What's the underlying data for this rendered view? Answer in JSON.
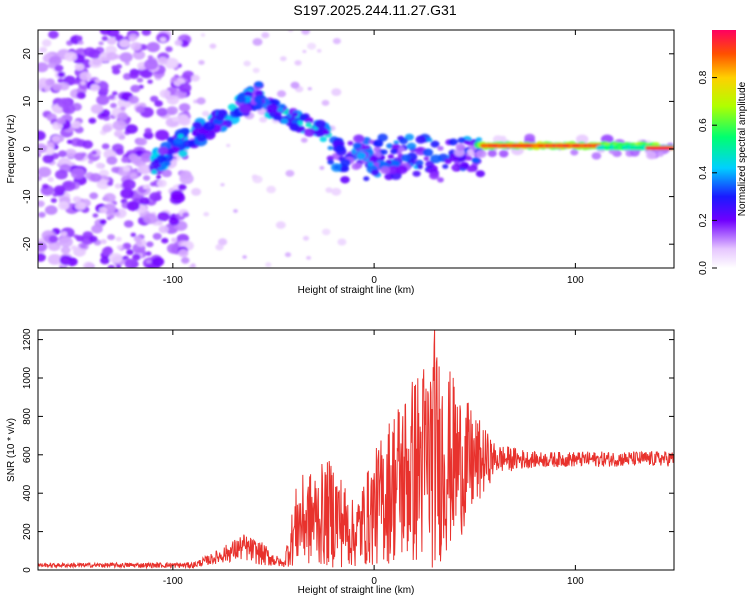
{
  "title": "S197.2025.244.11.27.G31",
  "chart_data": [
    {
      "type": "heatmap",
      "title": "",
      "xlabel": "Height of straight line (km)",
      "ylabel": "Frequency (Hz)",
      "xlim": [
        -167,
        149
      ],
      "ylim": [
        -25,
        25
      ],
      "xticks": [
        -100,
        0,
        100
      ],
      "yticks": [
        -20,
        -10,
        0,
        10,
        20
      ],
      "colorbar": {
        "label": "Normalized spectral amplitude",
        "range": [
          0,
          1
        ],
        "ticks": [
          "0.0",
          "0.2",
          "0.4",
          "0.6",
          "0.8"
        ]
      },
      "features": [
        {
          "name": "scattered-noise",
          "x_range": [
            -167,
            -95
          ],
          "freq_range": [
            -25,
            25
          ],
          "amplitude": 0.15
        },
        {
          "name": "rising-trace",
          "x_range": [
            -110,
            -55
          ],
          "freq_range": [
            -3,
            14
          ],
          "amplitude": 0.4
        },
        {
          "name": "falling-trace",
          "x_range": [
            -55,
            -22
          ],
          "freq_range": [
            3,
            9
          ],
          "amplitude": 0.45
        },
        {
          "name": "near-zero-band",
          "x_range": [
            -20,
            50
          ],
          "freq_range": [
            -4,
            2
          ],
          "amplitude": 0.35
        },
        {
          "name": "strong-stable-line",
          "x_range": [
            50,
            148
          ],
          "freq": 0.5,
          "amplitude": 0.95
        }
      ]
    },
    {
      "type": "line",
      "title": "",
      "xlabel": "Height of straight line (km)",
      "ylabel": "SNR (10 * v/v)",
      "xlim": [
        -167,
        149
      ],
      "ylim": [
        0,
        1250
      ],
      "xticks": [
        -100,
        0,
        100
      ],
      "yticks": [
        0,
        200,
        400,
        600,
        800,
        1000,
        1200
      ],
      "color": "#e8322d",
      "profile": [
        {
          "x": -167,
          "mean": 25,
          "amp": 10
        },
        {
          "x": -90,
          "mean": 25,
          "amp": 15
        },
        {
          "x": -80,
          "mean": 60,
          "amp": 30
        },
        {
          "x": -65,
          "mean": 120,
          "amp": 70
        },
        {
          "x": -55,
          "mean": 80,
          "amp": 60
        },
        {
          "x": -45,
          "mean": 30,
          "amp": 15
        },
        {
          "x": -38,
          "mean": 250,
          "amp": 230
        },
        {
          "x": -20,
          "mean": 300,
          "amp": 290
        },
        {
          "x": -10,
          "mean": 180,
          "amp": 170
        },
        {
          "x": 10,
          "mean": 450,
          "amp": 420
        },
        {
          "x": 30,
          "mean": 600,
          "amp": 600
        },
        {
          "x": 45,
          "mean": 550,
          "amp": 350
        },
        {
          "x": 60,
          "mean": 580,
          "amp": 80
        },
        {
          "x": 80,
          "mean": 575,
          "amp": 40
        },
        {
          "x": 149,
          "mean": 580,
          "amp": 40
        }
      ],
      "peak": {
        "x": 30,
        "y": 1250
      }
    }
  ]
}
